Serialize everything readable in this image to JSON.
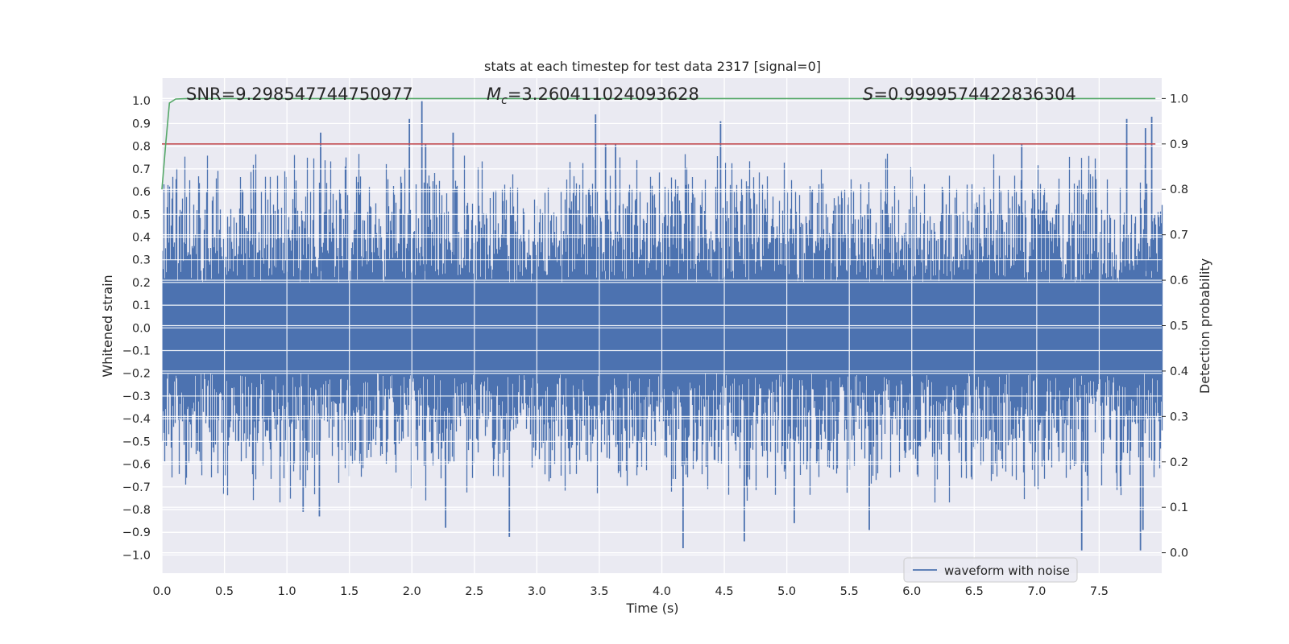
{
  "chart_data": {
    "type": "line",
    "title": "stats at each timestep for test data 2317 [signal=0]",
    "xlabel": "Time (s)",
    "ylabel": "Whitened strain",
    "y2label": "Detection probability",
    "xlim": [
      0.0,
      8.0
    ],
    "ylim": [
      -1.08,
      1.1
    ],
    "y2lim": [
      -0.045,
      1.045
    ],
    "xticks": [
      "0.0",
      "0.5",
      "1.0",
      "1.5",
      "2.0",
      "2.5",
      "3.0",
      "3.5",
      "4.0",
      "4.5",
      "5.0",
      "5.5",
      "6.0",
      "6.5",
      "7.0",
      "7.5"
    ],
    "xtick_values": [
      0.0,
      0.5,
      1.0,
      1.5,
      2.0,
      2.5,
      3.0,
      3.5,
      4.0,
      4.5,
      5.0,
      5.5,
      6.0,
      6.5,
      7.0,
      7.5
    ],
    "yticks": [
      "1.0",
      "0.9",
      "0.8",
      "0.7",
      "0.6",
      "0.5",
      "0.4",
      "0.3",
      "0.2",
      "0.1",
      "0.0",
      "−0.1",
      "−0.2",
      "−0.3",
      "−0.4",
      "−0.5",
      "−0.6",
      "−0.7",
      "−0.8",
      "−0.9",
      "−1.0"
    ],
    "ytick_values": [
      1.0,
      0.9,
      0.8,
      0.7,
      0.6,
      0.5,
      0.4,
      0.3,
      0.2,
      0.1,
      0.0,
      -0.1,
      -0.2,
      -0.3,
      -0.4,
      -0.5,
      -0.6,
      -0.7,
      -0.8,
      -0.9,
      -1.0
    ],
    "y2ticks": [
      "1.0",
      "0.9",
      "0.8",
      "0.7",
      "0.6",
      "0.5",
      "0.4",
      "0.3",
      "0.2",
      "0.1",
      "0.0"
    ],
    "y2tick_values": [
      1.0,
      0.9,
      0.8,
      0.7,
      0.6,
      0.5,
      0.4,
      0.3,
      0.2,
      0.1,
      0.0
    ],
    "annotations": {
      "snr": "SNR=9.298547744750977",
      "mc_symbol": "M",
      "mc_subscript": "c",
      "mc_value": "=3.260411024093628",
      "s_symbol": "S",
      "s_value": "=0.9999574422836304"
    },
    "legend": {
      "label": "waveform with noise",
      "position": "lower-right"
    },
    "series": [
      {
        "name": "waveform with noise",
        "axis": "left",
        "color": "#4c72b0",
        "envelope": "dense noise, |strain| typically 0.2–0.7 with spikes to about ±1.0",
        "spikes_positive": [
          {
            "x": 1.27,
            "y": 0.86
          },
          {
            "x": 1.98,
            "y": 0.92
          },
          {
            "x": 2.08,
            "y": 1.0
          },
          {
            "x": 2.11,
            "y": 0.81
          },
          {
            "x": 2.33,
            "y": 0.86
          },
          {
            "x": 3.47,
            "y": 0.94
          },
          {
            "x": 3.55,
            "y": 0.81
          },
          {
            "x": 3.63,
            "y": 0.81
          },
          {
            "x": 4.47,
            "y": 0.91
          },
          {
            "x": 6.88,
            "y": 0.81
          },
          {
            "x": 7.72,
            "y": 0.92
          },
          {
            "x": 7.87,
            "y": 0.88
          },
          {
            "x": 7.92,
            "y": 0.93
          }
        ],
        "spikes_negative": [
          {
            "x": 1.13,
            "y": -0.81
          },
          {
            "x": 1.26,
            "y": -0.83
          },
          {
            "x": 2.27,
            "y": -0.88
          },
          {
            "x": 2.78,
            "y": -0.92
          },
          {
            "x": 4.17,
            "y": -0.97
          },
          {
            "x": 4.66,
            "y": -0.94
          },
          {
            "x": 5.06,
            "y": -0.86
          },
          {
            "x": 5.66,
            "y": -0.89
          },
          {
            "x": 7.36,
            "y": -0.98
          },
          {
            "x": 7.83,
            "y": -0.98
          },
          {
            "x": 7.85,
            "y": -0.89
          }
        ]
      },
      {
        "name": "detection probability",
        "axis": "right",
        "color": "#55a868",
        "x": [
          0.0,
          0.03,
          0.06,
          0.11,
          0.2,
          1.0,
          2.0,
          4.0,
          6.0,
          7.95
        ],
        "y": [
          0.8,
          0.9,
          0.99,
          0.999,
          1.0,
          1.0,
          1.0,
          1.0,
          1.0,
          1.0
        ]
      },
      {
        "name": "threshold",
        "axis": "right",
        "color": "#c44e52",
        "x": [
          0.0,
          7.95
        ],
        "y": [
          0.9,
          0.9
        ]
      }
    ]
  }
}
